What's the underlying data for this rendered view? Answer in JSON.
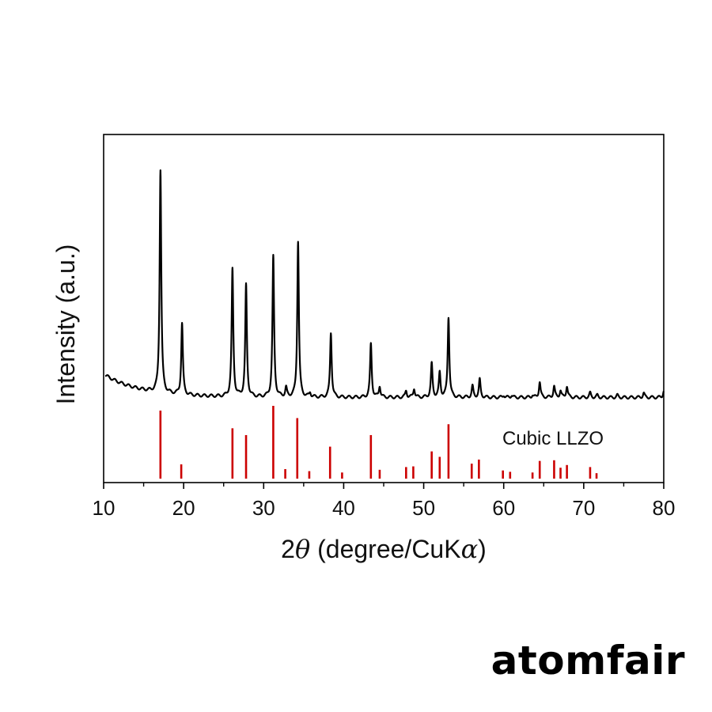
{
  "brand": "atomfair",
  "chart_data": {
    "type": "line",
    "xlabel": "2θ (degree/CuKα)",
    "xlabel_parts": {
      "prefix": "2",
      "theta": "θ",
      "middle": " (degree/CuK",
      "alpha": "α",
      "suffix": ")"
    },
    "ylabel": "Intensity (a.u.)",
    "xlim": [
      10,
      80
    ],
    "xticks": [
      "10",
      "20",
      "30",
      "40",
      "50",
      "60",
      "70",
      "80"
    ],
    "grid": false,
    "reference_label": "Cubic LLZO",
    "colors": {
      "pattern": "#000000",
      "reference": "#cc0000"
    },
    "pattern": {
      "baseline_start": 0.12,
      "baseline_end": 0.02,
      "peaks": [
        {
          "x": 17.1,
          "y": 1.0
        },
        {
          "x": 19.8,
          "y": 0.32
        },
        {
          "x": 26.1,
          "y": 0.57
        },
        {
          "x": 27.8,
          "y": 0.5
        },
        {
          "x": 31.2,
          "y": 0.63
        },
        {
          "x": 32.8,
          "y": 0.04
        },
        {
          "x": 34.3,
          "y": 0.7
        },
        {
          "x": 35.8,
          "y": 0.02
        },
        {
          "x": 38.4,
          "y": 0.29
        },
        {
          "x": 43.4,
          "y": 0.24
        },
        {
          "x": 44.5,
          "y": 0.05
        },
        {
          "x": 47.8,
          "y": 0.03
        },
        {
          "x": 48.8,
          "y": 0.04
        },
        {
          "x": 51.0,
          "y": 0.15
        },
        {
          "x": 52.0,
          "y": 0.11
        },
        {
          "x": 53.1,
          "y": 0.36
        },
        {
          "x": 56.1,
          "y": 0.05
        },
        {
          "x": 57.0,
          "y": 0.08
        },
        {
          "x": 60.0,
          "y": 0.01
        },
        {
          "x": 61.0,
          "y": 0.01
        },
        {
          "x": 63.6,
          "y": 0.01
        },
        {
          "x": 64.5,
          "y": 0.07
        },
        {
          "x": 66.3,
          "y": 0.05
        },
        {
          "x": 67.1,
          "y": 0.03
        },
        {
          "x": 67.9,
          "y": 0.05
        },
        {
          "x": 70.8,
          "y": 0.02
        },
        {
          "x": 71.7,
          "y": 0.01
        },
        {
          "x": 74.2,
          "y": 0.01
        },
        {
          "x": 77.5,
          "y": 0.02
        },
        {
          "x": 80.0,
          "y": 0.03
        }
      ]
    },
    "reference": [
      {
        "x": 17.1,
        "y": 1.0
      },
      {
        "x": 19.7,
        "y": 0.21
      },
      {
        "x": 26.1,
        "y": 0.74
      },
      {
        "x": 27.8,
        "y": 0.64
      },
      {
        "x": 31.2,
        "y": 1.07
      },
      {
        "x": 32.7,
        "y": 0.14
      },
      {
        "x": 34.2,
        "y": 0.89
      },
      {
        "x": 35.7,
        "y": 0.11
      },
      {
        "x": 38.3,
        "y": 0.47
      },
      {
        "x": 39.8,
        "y": 0.09
      },
      {
        "x": 43.4,
        "y": 0.64
      },
      {
        "x": 44.5,
        "y": 0.13
      },
      {
        "x": 47.8,
        "y": 0.17
      },
      {
        "x": 48.7,
        "y": 0.18
      },
      {
        "x": 51.0,
        "y": 0.4
      },
      {
        "x": 52.0,
        "y": 0.32
      },
      {
        "x": 53.1,
        "y": 0.8
      },
      {
        "x": 56.0,
        "y": 0.22
      },
      {
        "x": 56.9,
        "y": 0.28
      },
      {
        "x": 59.9,
        "y": 0.12
      },
      {
        "x": 60.8,
        "y": 0.1
      },
      {
        "x": 63.6,
        "y": 0.09
      },
      {
        "x": 64.5,
        "y": 0.26
      },
      {
        "x": 66.3,
        "y": 0.27
      },
      {
        "x": 67.1,
        "y": 0.16
      },
      {
        "x": 67.9,
        "y": 0.2
      },
      {
        "x": 70.8,
        "y": 0.17
      },
      {
        "x": 71.6,
        "y": 0.08
      }
    ]
  }
}
